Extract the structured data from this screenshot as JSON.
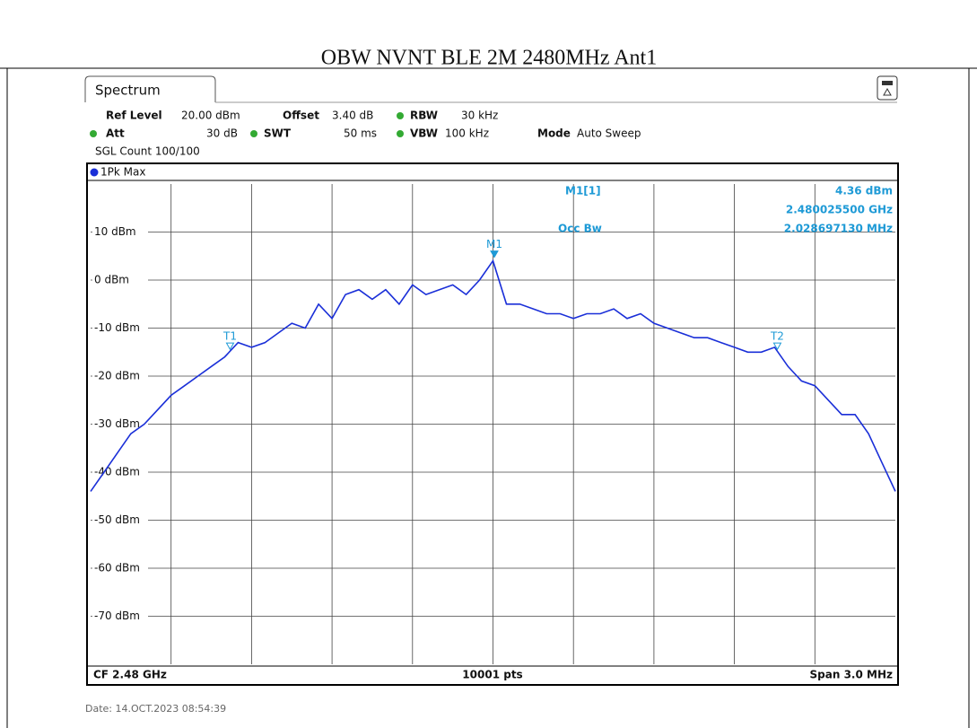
{
  "title": "OBW NVNT BLE 2M 2480MHz Ant1",
  "tab": "Spectrum",
  "settings": {
    "ref_level_label": "Ref Level",
    "ref_level": "20.00 dBm",
    "offset_label": "Offset",
    "offset": "3.40 dB",
    "rbw_label": "RBW",
    "rbw": "30 kHz",
    "att_label": "Att",
    "att": "30 dB",
    "swt_label": "SWT",
    "swt": "50 ms",
    "vbw_label": "VBW",
    "vbw": "100 kHz",
    "mode_label": "Mode",
    "mode": "Auto Sweep",
    "sgl_count": "SGL Count 100/100"
  },
  "trace_label": "1Pk Max",
  "readout": {
    "marker": "M1[1]",
    "level": "4.36 dBm",
    "frequency": "2.480025500 GHz",
    "occ_label": "Occ Bw",
    "occ": "2.028697130 MHz"
  },
  "footer": {
    "left": "CF 2.48 GHz",
    "center": "10001 pts",
    "right": "Span 3.0 MHz"
  },
  "date": "Date: 14.OCT.2023  08:54:39",
  "chart_data": {
    "type": "line",
    "color": "#1a2fd8",
    "grid": true,
    "ylim": [
      -80,
      20
    ],
    "yticks": [
      {
        "value": 10,
        "label": "10 dBm"
      },
      {
        "value": 0,
        "label": "0 dBm"
      },
      {
        "value": -10,
        "label": "-10 dBm"
      },
      {
        "value": -20,
        "label": "-20 dBm"
      },
      {
        "value": -30,
        "label": "-30 dBm"
      },
      {
        "value": -40,
        "label": "-40 dBm"
      },
      {
        "value": -50,
        "label": "-50 dBm"
      },
      {
        "value": -60,
        "label": "-60 dBm"
      },
      {
        "value": -70,
        "label": "-70 dBm"
      }
    ],
    "values": [
      -44,
      -40,
      -36,
      -32,
      -30,
      -27,
      -24,
      -22,
      -20,
      -18,
      -16,
      -13,
      -14,
      -13,
      -11,
      -9,
      -10,
      -5,
      -8,
      -3,
      -2,
      -4,
      -2,
      -5,
      -1,
      -3,
      -2,
      -1,
      -3,
      0,
      4,
      -5,
      -5,
      -6,
      -7,
      -7,
      -8,
      -7,
      -7,
      -6,
      -8,
      -7,
      -9,
      -10,
      -11,
      -12,
      -12,
      -13,
      -14,
      -15,
      -15,
      -14,
      -18,
      -21,
      -22,
      -25,
      -28,
      -28,
      -32,
      -38,
      -44
    ],
    "markers": [
      {
        "label": "M1",
        "value": 4.36
      },
      {
        "label": "T1"
      },
      {
        "label": "T2"
      }
    ]
  }
}
